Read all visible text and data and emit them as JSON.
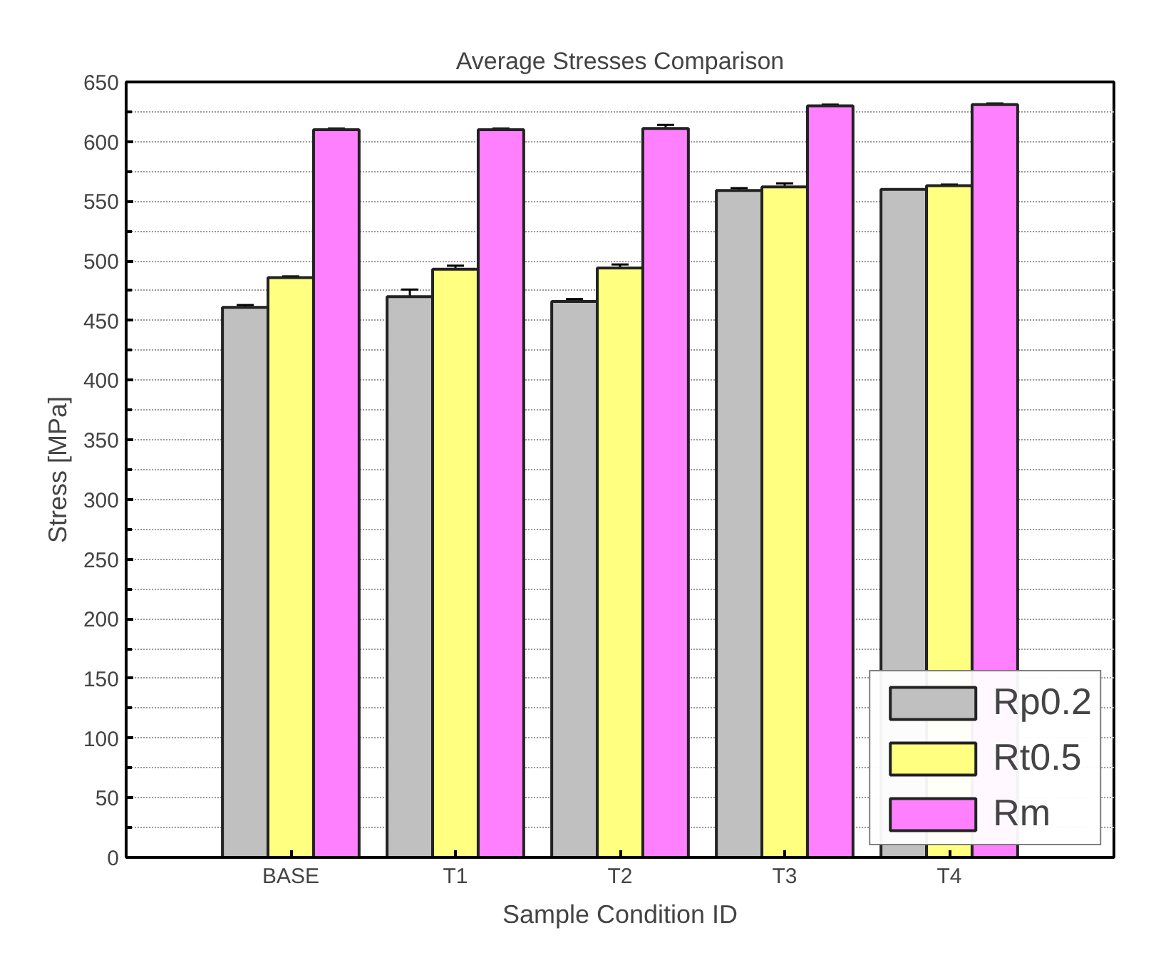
{
  "chart_data": {
    "type": "bar",
    "title": "Average Stresses Comparison",
    "xlabel": "Sample Condition ID",
    "ylabel": "Stress [MPa]",
    "categories": [
      null,
      "BASE",
      "T1",
      "T2",
      "T3",
      "T4",
      null
    ],
    "series": [
      {
        "name": "Rp0.2",
        "color": "#c0c0c0",
        "values": [
          null,
          461,
          470,
          466,
          559,
          560,
          null
        ],
        "errors": [
          null,
          2,
          6,
          2,
          2,
          null,
          null
        ]
      },
      {
        "name": "Rt0.5",
        "color": "#ffff80",
        "values": [
          null,
          486,
          493,
          494,
          562,
          563,
          null
        ],
        "errors": [
          null,
          1,
          3,
          3,
          3,
          1,
          null
        ]
      },
      {
        "name": "Rm",
        "color": "#ff80ff",
        "values": [
          null,
          610,
          610,
          611,
          630,
          631,
          null
        ],
        "errors": [
          null,
          1,
          1,
          3,
          1,
          1,
          null
        ]
      }
    ],
    "ylim": [
      0,
      650
    ],
    "yticks": [
      0,
      50,
      100,
      150,
      200,
      250,
      300,
      350,
      400,
      450,
      500,
      550,
      600,
      650
    ],
    "grid": "y",
    "legend": "bottom right"
  }
}
